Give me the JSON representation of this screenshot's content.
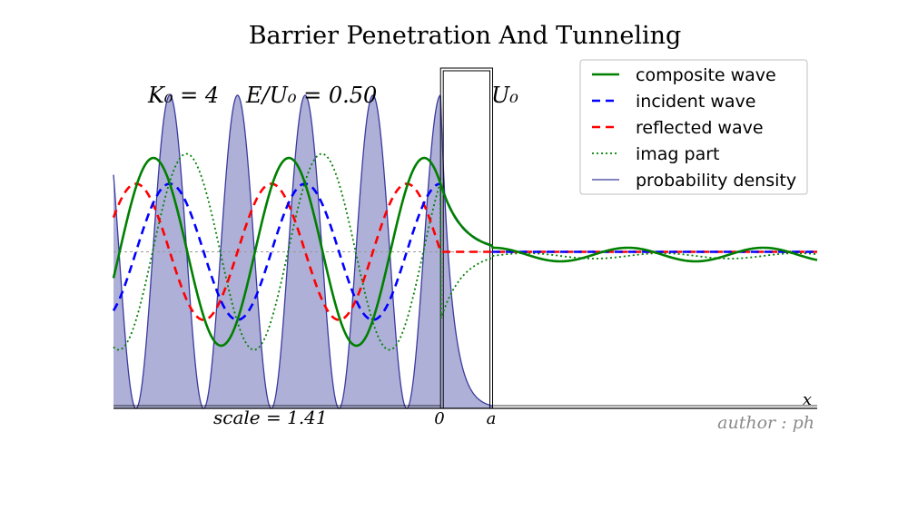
{
  "chart_data": {
    "type": "line",
    "title": "Barrier Penetration And Tunneling",
    "annotations": {
      "k0": "K₀ = 4",
      "energy_ratio": "E/U₀ = 0.50",
      "barrier_label": "U₀",
      "scale": "scale = 1.41",
      "x_origin": "0",
      "x_barrier_end": "a",
      "x_axis_label": "x",
      "author": "author : ph"
    },
    "legend_position": "top-right",
    "xlim": [
      -6.6,
      7.6
    ],
    "ylim": [
      -1.15,
      1.45
    ],
    "barrier": {
      "start": 0,
      "end": 1.05,
      "height": 1.35
    },
    "series": [
      {
        "name": "composite wave",
        "color": "#008000",
        "style": "solid"
      },
      {
        "name": "incident wave",
        "color": "#0000ff",
        "style": "dashed"
      },
      {
        "name": "reflected wave",
        "color": "#ff0000",
        "style": "dashed"
      },
      {
        "name": "imag part",
        "color": "#008000",
        "style": "dotted"
      },
      {
        "name": "probability density",
        "color": "#3a3a9e",
        "style": "solid",
        "fill": "#aeb0d8"
      }
    ]
  }
}
